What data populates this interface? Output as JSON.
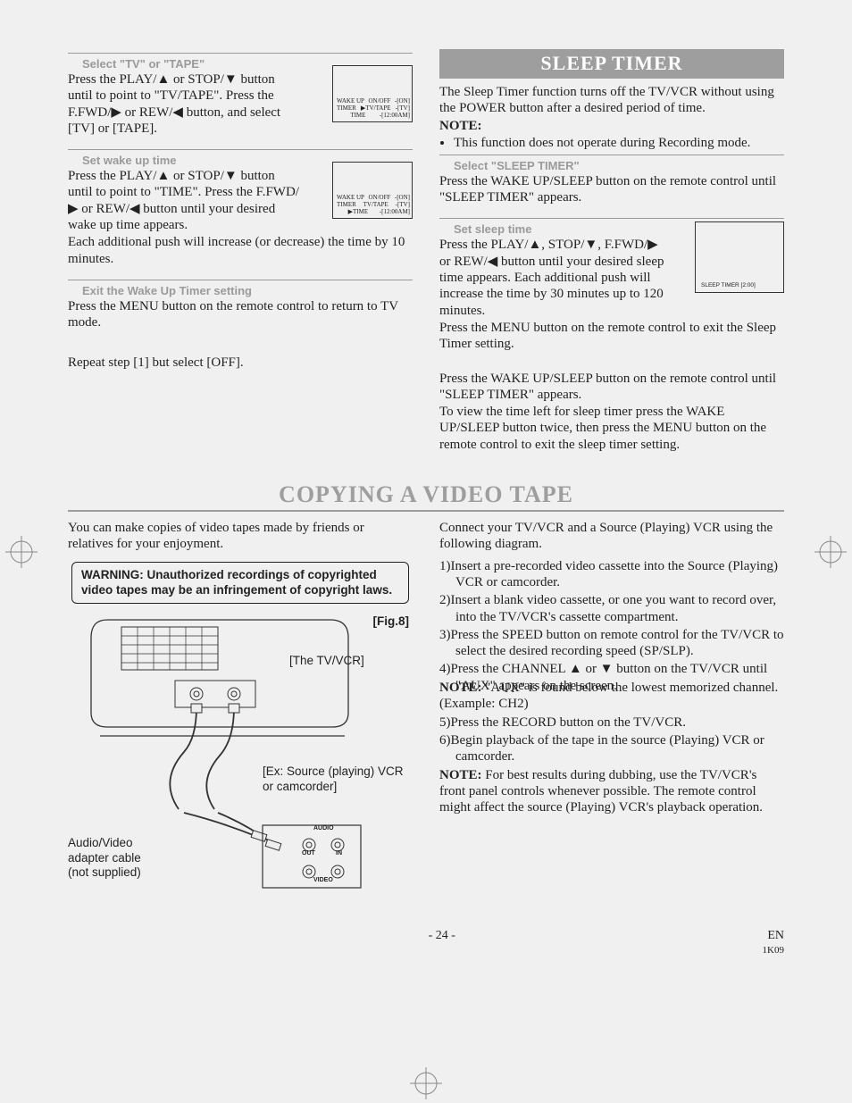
{
  "left": {
    "s1": {
      "head": "Select \"TV\" or \"TAPE\"",
      "p1": "Press the PLAY/▲ or STOP/▼ button until to point to \"TV/TAPE\". Press the F.FWD/▶ or REW/◀ button, and select [TV] or [TAPE].",
      "osd_l1a": "WAKE UP",
      "osd_l1b": "ON/OFF",
      "osd_l1c": "-[ON]",
      "osd_l2a": "TIMER",
      "osd_l2b": "▶TV/TAPE",
      "osd_l2c": "-[TV]",
      "osd_l3b": "TIME",
      "osd_l3c": "-[12:00AM]"
    },
    "s2": {
      "head": "Set wake up time",
      "p1": "Press the PLAY/▲ or STOP/▼ button until to point to \"TIME\". Press the F.FWD/▶ or REW/◀ button until your desired wake up time appears.",
      "p2": "Each additional push will increase (or decrease) the time by 10 minutes.",
      "osd_l1a": "WAKE UP",
      "osd_l1b": "ON/OFF",
      "osd_l1c": "-[ON]",
      "osd_l2a": "TIMER",
      "osd_l2b": "TV/TAPE",
      "osd_l2c": "-[TV]",
      "osd_l3b": "▶TIME",
      "osd_l3c": "-[12:00AM]"
    },
    "s3": {
      "head": "Exit the Wake Up Timer setting",
      "p1": "Press the MENU button on the remote control to return to TV mode."
    },
    "s4": {
      "p": "Repeat step [1] but select [OFF]."
    }
  },
  "right": {
    "title": "SLEEP TIMER",
    "intro": "The Sleep Timer function turns off the TV/VCR without using the POWER button after a desired period of time.",
    "note_label": "NOTE:",
    "note_li": "This function does not operate during Recording mode.",
    "s1": {
      "head": "Select \"SLEEP TIMER\"",
      "p": "Press the WAKE UP/SLEEP button on the remote control until \"SLEEP TIMER\" appears."
    },
    "s2": {
      "head": "Set sleep time",
      "p1": "Press the PLAY/▲, STOP/▼, F.FWD/▶ or REW/◀ button until your desired sleep time appears. Each additional push will increase the time by 30 minutes up to 120 minutes.",
      "p2": "Press the MENU button on the remote control to exit the Sleep Timer setting.",
      "osd": "SLEEP TIMER    [2:00]"
    },
    "s3": {
      "p1": "Press the WAKE UP/SLEEP button on the remote control until \"SLEEP TIMER\" appears.",
      "p2": "To view the time left for sleep timer press the WAKE UP/SLEEP button twice, then press the MENU button on the remote control to exit the sleep timer setting."
    }
  },
  "copy": {
    "title": "COPYING A VIDEO TAPE",
    "left": {
      "intro": "You can make copies of video tapes made by friends or relatives for your enjoyment.",
      "warning": "WARNING: Unauthorized recordings of copyrighted video tapes may be an infringement of copyright laws.",
      "fig_label": "[Fig.8]",
      "tvvcr": "[The TV/VCR]",
      "source": "[Ex: Source (playing) VCR or camcorder]",
      "cable": "Audio/Video\nadapter cable\n(not supplied)",
      "audio": "AUDIO",
      "video": "VIDEO",
      "out": "OUT",
      "in": "IN"
    },
    "right": {
      "intro": "Connect your TV/VCR and a Source (Playing) VCR using the following diagram.",
      "n1": "1)Insert a pre-recorded video cassette into the Source (Playing) VCR or camcorder.",
      "n2": "2)Insert a blank video cassette, or one you want to record over, into the TV/VCR's cassette compartment.",
      "n3": "3)Press the SPEED button on remote control for the TV/VCR to select the desired recording speed (SP/SLP).",
      "n4": "4)Press the CHANNEL ▲ or ▼ button on the TV/VCR until \"AUX\" appears on the screen.",
      "note1": "NOTE: \"AUX\" is found below the lowest memorized channel. (Example: CH2)",
      "n5": "5)Press the RECORD button on the TV/VCR.",
      "n6": "6)Begin playback of the tape in the source (Playing) VCR or camcorder.",
      "note2a": "NOTE:",
      "note2b": " For best results during dubbing, use the TV/VCR's front panel controls whenever possible. The remote control might affect the source (Playing) VCR's playback operation."
    }
  },
  "footer": {
    "page": "- 24 -",
    "lang": "EN",
    "code": "1K09"
  },
  "style": {
    "accent": "#9e9e9e",
    "subhead_color": "#9a9a9a"
  }
}
